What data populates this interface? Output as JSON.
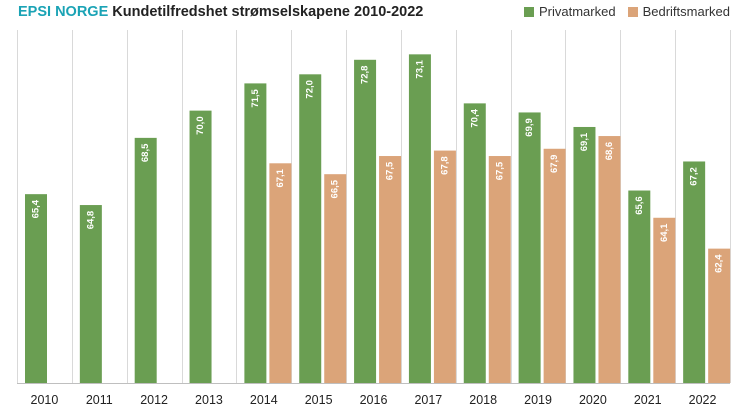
{
  "header": {
    "brand": "EPSI NORGE",
    "title": "Kundetilfredshet strømselskapene 2010-2022"
  },
  "colors": {
    "brand": "#1aa3b5",
    "privat": "#6a9e52",
    "bedrift": "#dba479",
    "grid": "#d9d9d9"
  },
  "chart_data": {
    "type": "bar",
    "title": "Kundetilfredshet strømselskapene 2010-2022",
    "categories": [
      "2010",
      "2011",
      "2012",
      "2013",
      "2014",
      "2015",
      "2016",
      "2017",
      "2018",
      "2019",
      "2020",
      "2021",
      "2022"
    ],
    "series": [
      {
        "name": "Privatmarked",
        "color": "#6a9e52",
        "values": [
          65.4,
          64.8,
          68.5,
          70.0,
          71.5,
          72.0,
          72.8,
          73.1,
          70.4,
          69.9,
          69.1,
          65.6,
          67.2
        ],
        "labels": [
          "65,4",
          "64,8",
          "68,5",
          "70,0",
          "71,5",
          "72,0",
          "72,8",
          "73,1",
          "70,4",
          "69,9",
          "69,1",
          "65,6",
          "67,2"
        ]
      },
      {
        "name": "Bedriftsmarked",
        "color": "#dba479",
        "values": [
          null,
          null,
          null,
          null,
          67.1,
          66.5,
          67.5,
          67.8,
          67.5,
          67.9,
          68.6,
          64.1,
          62.4
        ],
        "labels": [
          null,
          null,
          null,
          null,
          "67,1",
          "66,5",
          "67,5",
          "67,8",
          "67,5",
          "67,9",
          "68,6",
          "64,1",
          "62,4"
        ]
      }
    ],
    "ylim": [
      55,
      74
    ],
    "legend_position": "top-right",
    "grid": "vertical"
  }
}
